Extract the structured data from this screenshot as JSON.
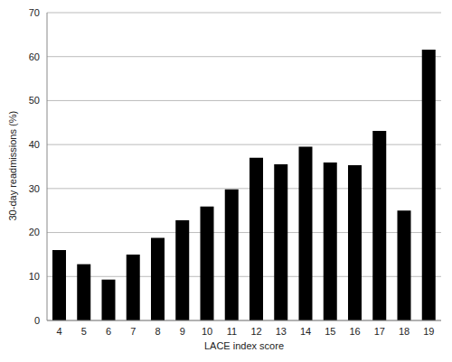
{
  "chart_data": {
    "type": "bar",
    "x_label": "LACE index score",
    "y_label": "30-day readmissions (%)",
    "categories": [
      "4",
      "5",
      "6",
      "7",
      "8",
      "9",
      "10",
      "11",
      "12",
      "13",
      "14",
      "15",
      "16",
      "17",
      "18",
      "19"
    ],
    "values": [
      16,
      12.8,
      9.3,
      15,
      18.8,
      22.8,
      25.9,
      29.8,
      37,
      35.5,
      39.5,
      35.9,
      35.3,
      43.1,
      25,
      61.6
    ],
    "color": "#000000",
    "ylim": [
      0,
      70
    ],
    "yticks": [
      0,
      10,
      20,
      30,
      40,
      50,
      60,
      70
    ],
    "grid": true
  }
}
